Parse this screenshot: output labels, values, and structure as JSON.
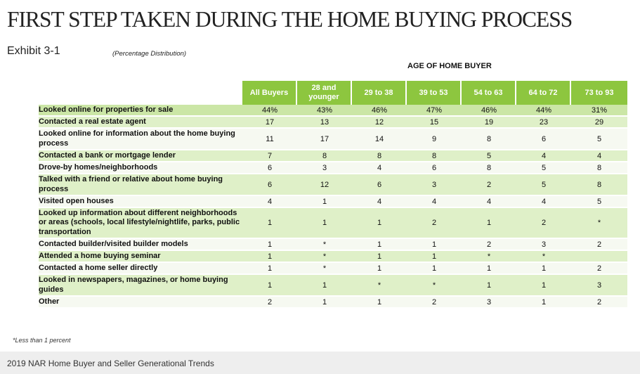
{
  "title": "FIRST STEP TAKEN DURING THE HOME BUYING PROCESS",
  "exhibit": "Exhibit 3-1",
  "distribution_note": "(Percentage Distribution)",
  "age_header": "AGE OF HOME BUYER",
  "columns": [
    "All Buyers",
    "28 and younger",
    "29 to 38",
    "39 to 53",
    "54 to 63",
    "64 to 72",
    "73 to 93"
  ],
  "rows": [
    {
      "label": "Looked online for properties for sale",
      "values": [
        "44%",
        "43%",
        "46%",
        "47%",
        "46%",
        "44%",
        "31%"
      ]
    },
    {
      "label": "Contacted a real estate agent",
      "values": [
        "17",
        "13",
        "12",
        "15",
        "19",
        "23",
        "29"
      ]
    },
    {
      "label": "Looked online for information about the home buying process",
      "values": [
        "11",
        "17",
        "14",
        "9",
        "8",
        "6",
        "5"
      ]
    },
    {
      "label": "Contacted a bank or mortgage lender",
      "values": [
        "7",
        "8",
        "8",
        "8",
        "5",
        "4",
        "4"
      ]
    },
    {
      "label": "Drove-by homes/neighborhoods",
      "values": [
        "6",
        "3",
        "4",
        "6",
        "8",
        "5",
        "8"
      ]
    },
    {
      "label": "Talked with a friend or relative about home buying process",
      "values": [
        "6",
        "12",
        "6",
        "3",
        "2",
        "5",
        "8"
      ]
    },
    {
      "label": "Visited open houses",
      "values": [
        "4",
        "1",
        "4",
        "4",
        "4",
        "4",
        "5"
      ]
    },
    {
      "label": "Looked up information about different neighborhoods or areas (schools, local lifestyle/nightlife, parks, public transportation",
      "values": [
        "1",
        "1",
        "1",
        "2",
        "1",
        "2",
        "*"
      ]
    },
    {
      "label": "Contacted builder/visited builder models",
      "values": [
        "1",
        "*",
        "1",
        "1",
        "2",
        "3",
        "2"
      ]
    },
    {
      "label": "Attended a home buying seminar",
      "values": [
        "1",
        "*",
        "1",
        "1",
        "*",
        "*",
        ""
      ]
    },
    {
      "label": "Contacted a home seller directly",
      "values": [
        "1",
        "*",
        "1",
        "1",
        "1",
        "1",
        "2"
      ]
    },
    {
      "label": "Looked in newspapers, magazines, or home buying guides",
      "values": [
        "1",
        "1",
        "*",
        "*",
        "1",
        "1",
        "3"
      ]
    },
    {
      "label": "Other",
      "values": [
        "2",
        "1",
        "1",
        "2",
        "3",
        "1",
        "2"
      ]
    }
  ],
  "footnote": "*Less than 1 percent",
  "footer": "2019 NAR Home Buyer and Seller Generational Trends",
  "colors": {
    "header_green": "#8dc63f",
    "row_light": "#dff0c8",
    "row_first": "#cbe6a6"
  }
}
